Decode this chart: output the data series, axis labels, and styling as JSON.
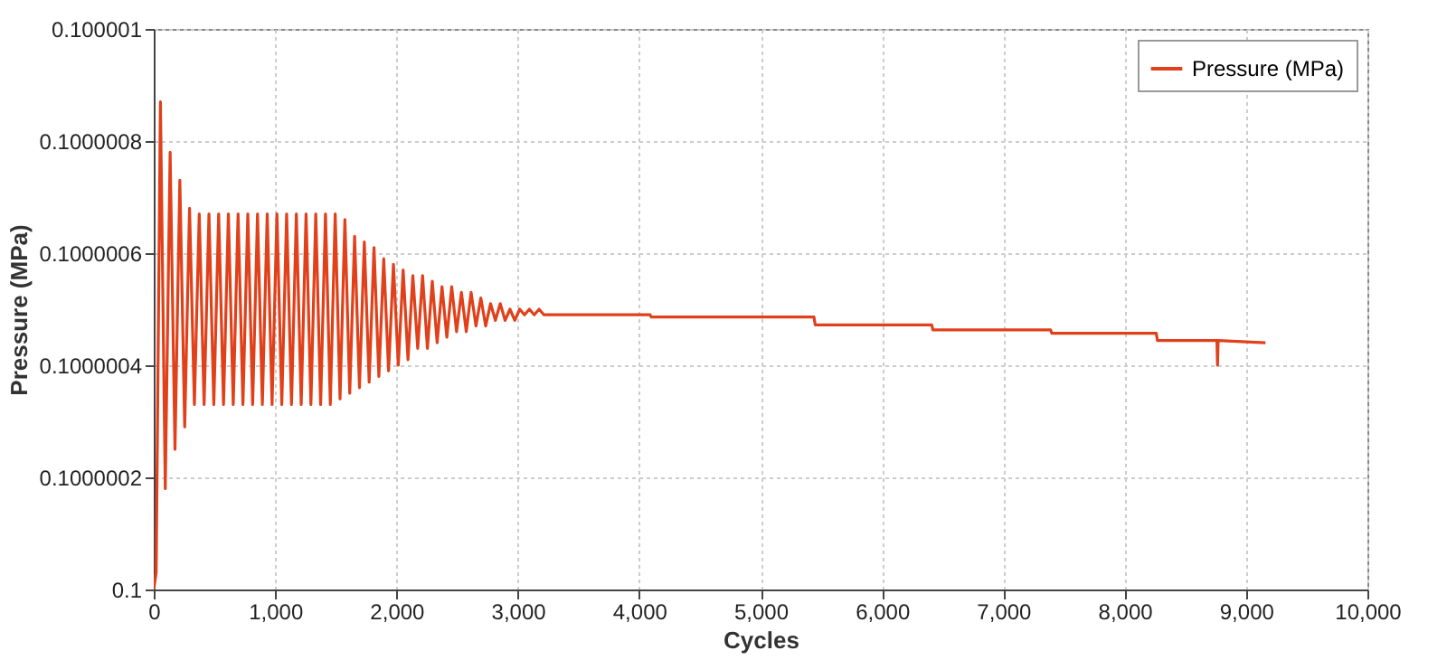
{
  "chart_data": {
    "type": "line",
    "xlabel": "Cycles",
    "ylabel": "Pressure (MPa)",
    "x": [
      0,
      20,
      55,
      95,
      135,
      175,
      215,
      255,
      295,
      335,
      375,
      415,
      455,
      495,
      535,
      575,
      615,
      655,
      695,
      735,
      775,
      815,
      855,
      895,
      935,
      975,
      1015,
      1055,
      1095,
      1135,
      1175,
      1215,
      1255,
      1295,
      1335,
      1375,
      1415,
      1455,
      1495,
      1535,
      1575,
      1615,
      1655,
      1695,
      1735,
      1775,
      1815,
      1855,
      1895,
      1935,
      1975,
      2015,
      2055,
      2095,
      2135,
      2175,
      2215,
      2255,
      2295,
      2335,
      2375,
      2415,
      2455,
      2495,
      2535,
      2575,
      2615,
      2655,
      2695,
      2735,
      2775,
      2815,
      2855,
      2895,
      2935,
      2975,
      3015,
      3055,
      3095,
      3135,
      3175,
      3215,
      3255,
      4090,
      4100,
      5440,
      5450,
      6410,
      6420,
      7390,
      7400,
      8260,
      8270,
      8760,
      8765,
      8770,
      9160
    ],
    "series": [
      {
        "name": "Pressure (MPa)",
        "color": "#e0401a",
        "values": [
          0.1,
          0.10000003,
          0.10000087,
          0.10000018,
          0.10000078,
          0.10000025,
          0.10000073,
          0.10000029,
          0.10000068,
          0.10000033,
          0.10000067,
          0.10000033,
          0.10000067,
          0.10000033,
          0.10000067,
          0.10000033,
          0.10000067,
          0.10000033,
          0.10000067,
          0.10000033,
          0.10000067,
          0.10000033,
          0.10000067,
          0.10000033,
          0.10000067,
          0.10000033,
          0.10000067,
          0.10000033,
          0.10000067,
          0.10000033,
          0.10000067,
          0.10000033,
          0.10000067,
          0.10000033,
          0.10000067,
          0.10000033,
          0.10000067,
          0.10000033,
          0.10000067,
          0.10000034,
          0.10000066,
          0.10000035,
          0.10000063,
          0.10000036,
          0.10000062,
          0.10000037,
          0.10000061,
          0.10000038,
          0.10000059,
          0.10000039,
          0.10000058,
          0.1000004,
          0.10000057,
          0.10000041,
          0.10000056,
          0.10000043,
          0.10000056,
          0.10000043,
          0.10000055,
          0.10000044,
          0.10000054,
          0.10000045,
          0.10000054,
          0.10000046,
          0.10000053,
          0.10000046,
          0.10000053,
          0.10000047,
          0.10000052,
          0.10000047,
          0.10000051,
          0.10000048,
          0.10000051,
          0.10000048,
          0.1000005,
          0.10000048,
          0.1000005,
          0.10000049,
          0.1000005,
          0.10000049,
          0.1000005,
          0.10000049,
          0.10000049,
          0.10000049,
          0.100000486,
          0.100000486,
          0.100000472,
          0.100000472,
          0.100000463,
          0.100000463,
          0.100000457,
          0.100000457,
          0.100000444,
          0.100000444,
          0.1000004,
          0.100000444,
          0.10000044
        ]
      }
    ],
    "xlim": [
      0,
      10000
    ],
    "xticks": [
      0,
      {
        "value": 1000,
        "label": "1,000"
      },
      {
        "value": 2000,
        "label": "2,000"
      },
      {
        "value": 3000,
        "label": "3,000"
      },
      {
        "value": 4000,
        "label": "4,000"
      },
      {
        "value": 5000,
        "label": "5,000"
      },
      {
        "value": 6000,
        "label": "6,000"
      },
      {
        "value": 7000,
        "label": "7,000"
      },
      {
        "value": 8000,
        "label": "8,000"
      },
      {
        "value": 9000,
        "label": "9,000"
      },
      {
        "value": 10000,
        "label": "10,000"
      }
    ],
    "ylim": [
      0.1,
      0.100001
    ],
    "yticks": [
      0.1,
      0.1000002,
      0.1000004,
      0.1000006,
      0.1000008,
      0.100001
    ],
    "grid": true,
    "legend": "top right",
    "line_style": "solid",
    "marker": "none"
  }
}
